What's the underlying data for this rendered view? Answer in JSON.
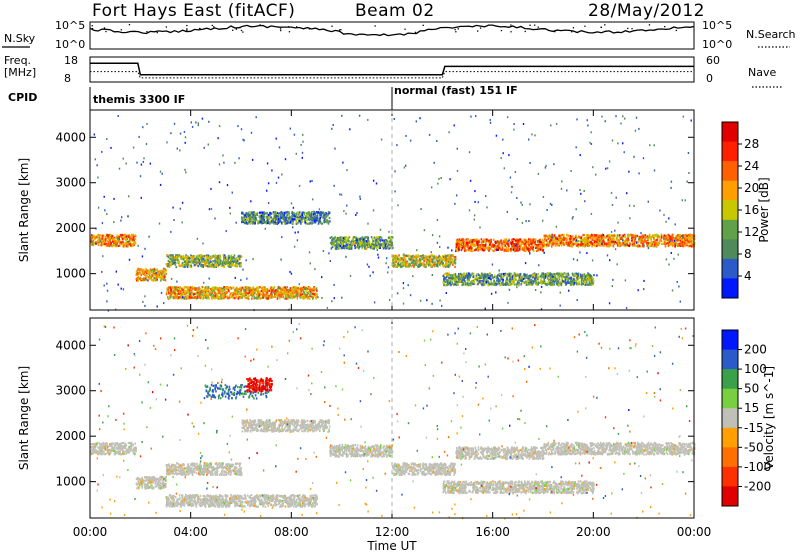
{
  "header": {
    "station": "Fort Hays East (fitACF)",
    "beam": "Beam 02",
    "date": "28/May/2012"
  },
  "status_panels": {
    "nsky_label": "N.Sky",
    "nsky_ticks": [
      "10^5",
      "10^0"
    ],
    "nsearch_label": "N.Search",
    "nsearch_ticks": [
      "10^5",
      "10^0"
    ],
    "freq_label": "Freq.",
    "freq_unit": "[MHz]",
    "freq_ticks": [
      "18",
      "8"
    ],
    "nave_label": "Nave",
    "nave_ticks": [
      "60",
      "0"
    ],
    "cpid_label": "CPID",
    "cpid_modes": [
      {
        "text": "themis 3300 IF",
        "start_hour": 0,
        "end_hour": 12
      },
      {
        "text": "normal (fast) 151 IF",
        "start_hour": 12,
        "end_hour": 24
      }
    ]
  },
  "colors": {
    "power_scale": [
      "#0018ff",
      "#2a5bc8",
      "#4f8a5a",
      "#5fa24a",
      "#c8c800",
      "#ffa000",
      "#ff6000",
      "#ff2000",
      "#e00000"
    ],
    "velocity_scale": [
      "#0018ff",
      "#2a5bc8",
      "#3aa04a",
      "#78d040",
      "#c0c0b8",
      "#ffa000",
      "#ff7000",
      "#ff3000",
      "#e00000"
    ],
    "ground_scatter": "#c0c0b8"
  },
  "chart_data": [
    {
      "type": "heatmap",
      "name": "Power",
      "ylabel": "Slant Range [km]",
      "xlabel": "Time UT",
      "xlim_hours": [
        0,
        24
      ],
      "ylim_km": [
        200,
        4600
      ],
      "x_ticks": [
        "00:00",
        "04:00",
        "08:00",
        "12:00",
        "16:00",
        "20:00",
        "00:00"
      ],
      "x_tick_hours": [
        0,
        4,
        8,
        12,
        16,
        20,
        24
      ],
      "y_ticks": [
        1000,
        2000,
        3000,
        4000
      ],
      "colorbar_label": "Power [dB]",
      "colorbar_ticks": [
        "4",
        "8",
        "12",
        "16",
        "20",
        "24",
        "28"
      ],
      "colorbar_range": [
        0,
        30
      ],
      "bands": [
        {
          "from_hour": 0.0,
          "to_hour": 1.8,
          "range_km": 1750,
          "dB": 20
        },
        {
          "from_hour": 1.8,
          "to_hour": 3.0,
          "range_km": 1000,
          "dB": 18
        },
        {
          "from_hour": 3.0,
          "to_hour": 6.0,
          "range_km": 1300,
          "dB": 12
        },
        {
          "from_hour": 6.0,
          "to_hour": 9.5,
          "range_km": 2250,
          "dB": 8
        },
        {
          "from_hour": 9.5,
          "to_hour": 12.0,
          "range_km": 1700,
          "dB": 10
        },
        {
          "from_hour": 12.0,
          "to_hour": 14.5,
          "range_km": 1300,
          "dB": 14
        },
        {
          "from_hour": 14.5,
          "to_hour": 18.0,
          "range_km": 1650,
          "dB": 22
        },
        {
          "from_hour": 18.0,
          "to_hour": 24.0,
          "range_km": 1750,
          "dB": 20
        },
        {
          "from_hour": 3.0,
          "to_hour": 9.0,
          "range_km": 600,
          "dB": 18
        },
        {
          "from_hour": 14.0,
          "to_hour": 20.0,
          "range_km": 900,
          "dB": 10
        }
      ]
    },
    {
      "type": "heatmap",
      "name": "Velocity",
      "ylabel": "Slant Range [km]",
      "xlabel": "Time UT",
      "xlim_hours": [
        0,
        24
      ],
      "ylim_km": [
        200,
        4600
      ],
      "x_ticks": [
        "00:00",
        "04:00",
        "08:00",
        "12:00",
        "16:00",
        "20:00",
        "00:00"
      ],
      "x_tick_hours": [
        0,
        4,
        8,
        12,
        16,
        20,
        24
      ],
      "y_ticks": [
        1000,
        2000,
        3000,
        4000
      ],
      "colorbar_label": "Velocity [m s^-1]",
      "colorbar_ticks": [
        "200",
        "100",
        "50",
        "15",
        "-15",
        "-50",
        "-100",
        "-200"
      ],
      "colorbar_range": [
        -250,
        250
      ],
      "ground_scatter_dominant": true,
      "features": [
        {
          "from_hour": 4.5,
          "to_hour": 7.0,
          "range_km": 3000,
          "velocity": 150
        },
        {
          "from_hour": 6.2,
          "to_hour": 7.2,
          "range_km": 3150,
          "velocity": -200
        }
      ]
    }
  ]
}
